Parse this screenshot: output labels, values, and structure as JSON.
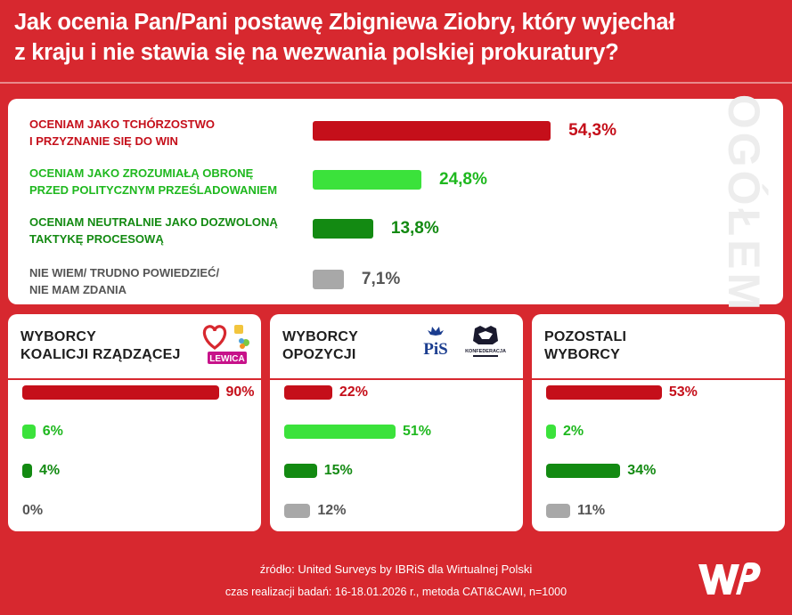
{
  "title": "Jak ocenia Pan/Pani postawę Zbigniewa Ziobry, który wyjechał\nz kraju i nie stawia się na wezwania polskiej prokuratury?",
  "side_label": "OGÓŁEM",
  "colors": {
    "background": "#d7282f",
    "dark_red": "#c50f1a",
    "light_green": "#3be23b",
    "dark_green": "#138a12",
    "gray": "#a8a8a8"
  },
  "chart_data": [
    {
      "type": "bar",
      "title": "OGÓŁEM",
      "categories": [
        "OCENIAM JAKO TCHÓRZOSTWO\nI PRZYZNANIE SIĘ DO WIN",
        "OCENIAM JAKO ZROZUMIAŁĄ OBRONĘ\nPRZED POLITYCZNYM PRZEŚLADOWANIEM",
        "OCENIAM NEUTRALNIE JAKO DOZWOLONĄ\nTAKTYKĘ PROCESOWĄ",
        "NIE WIEM/ TRUDNO POWIEDZIEĆ/\nNIE MAM ZDANIA"
      ],
      "values": [
        54.3,
        24.8,
        13.8,
        7.1
      ],
      "labels": [
        "54,3%",
        "24,8%",
        "13,8%",
        "7,1%"
      ],
      "colors": [
        "#c50f1a",
        "#3be23b",
        "#138a12",
        "#a8a8a8"
      ],
      "label_colors": [
        "#c50f1a",
        "#1fb81f",
        "#138a12",
        "#555555"
      ],
      "orientation": "horizontal"
    },
    {
      "type": "bar",
      "title": "WYBORCY\nKOALICJI RZĄDZĄCEJ",
      "values": [
        90,
        6,
        4,
        0
      ],
      "labels": [
        "90%",
        "6%",
        "4%",
        "0%"
      ],
      "orientation": "horizontal"
    },
    {
      "type": "bar",
      "title": "WYBORCY\nOPOZYCJI",
      "values": [
        22,
        51,
        15,
        12
      ],
      "labels": [
        "22%",
        "51%",
        "15%",
        "12%"
      ],
      "orientation": "horizontal"
    },
    {
      "type": "bar",
      "title": "POZOSTALI\nWYBORCY",
      "values": [
        53,
        2,
        34,
        11
      ],
      "labels": [
        "53%",
        "2%",
        "34%",
        "11%"
      ],
      "orientation": "horizontal"
    }
  ],
  "logos": {
    "koalicja": [
      "heart-logo",
      "flower-logo",
      "LEWICA"
    ],
    "opozycja": [
      "PiS",
      "KONFEDERACJA"
    ],
    "brand": "WP"
  },
  "footer": {
    "line1": "źródło: United Surveys by IBRiS dla Wirtualnej Polski",
    "line2": "czas realizacji badań: 16-18.01.2026 r., metoda CATI&CAWI, n=1000"
  }
}
